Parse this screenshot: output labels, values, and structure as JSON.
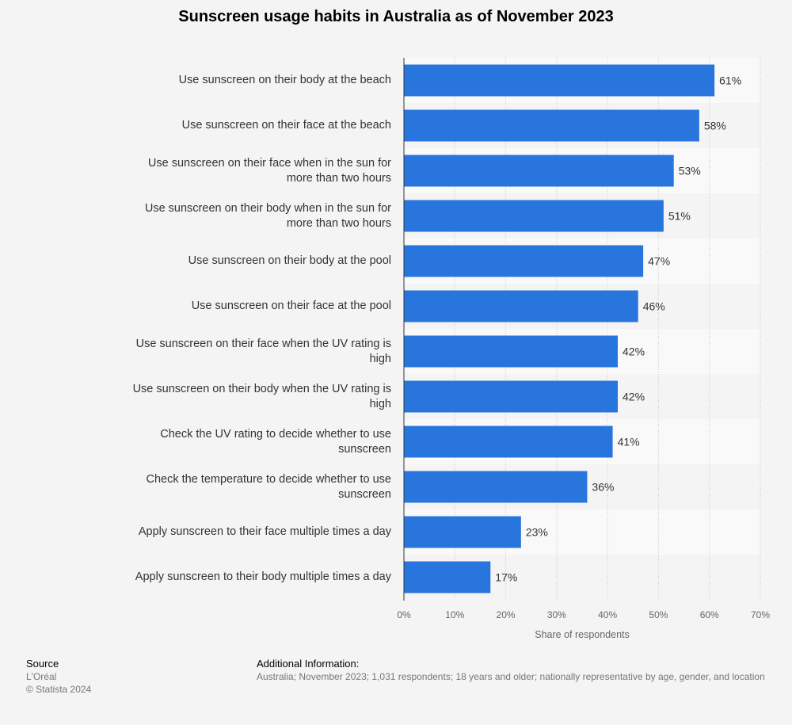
{
  "title": "Sunscreen usage habits in Australia as of November 2023",
  "chart_data": {
    "type": "bar",
    "orientation": "horizontal",
    "title": "Sunscreen usage habits in Australia as of November 2023",
    "categories": [
      "Use sunscreen on their body at the beach",
      "Use sunscreen on their face at the beach",
      "Use sunscreen on their face when in the sun for more than two hours",
      "Use sunscreen on their body when in the sun for more than two hours",
      "Use sunscreen on their body at the pool",
      "Use sunscreen on their face at the pool",
      "Use sunscreen on their face when the UV rating is high",
      "Use sunscreen on their body when the UV rating is high",
      "Check the UV rating to decide whether to use sunscreen",
      "Check the temperature to decide whether to use sunscreen",
      "Apply sunscreen to their face multiple times a day",
      "Apply sunscreen to their body multiple times a day"
    ],
    "values": [
      61,
      58,
      53,
      51,
      47,
      46,
      42,
      42,
      41,
      36,
      23,
      17
    ],
    "value_labels": [
      "61%",
      "58%",
      "53%",
      "51%",
      "47%",
      "46%",
      "42%",
      "42%",
      "41%",
      "36%",
      "23%",
      "17%"
    ],
    "xlabel": "Share of respondents",
    "ylabel": "",
    "xlim": [
      0,
      70
    ],
    "xticks": [
      0,
      10,
      20,
      30,
      40,
      50,
      60,
      70
    ],
    "xtick_labels": [
      "0%",
      "10%",
      "20%",
      "30%",
      "40%",
      "50%",
      "60%",
      "70%"
    ],
    "grid": true,
    "bar_color": "#2876dd"
  },
  "footer": {
    "source_heading": "Source",
    "source_name": "L'Oréal",
    "copyright": "© Statista 2024",
    "info_heading": "Additional Information:",
    "info_text": "Australia; November 2023; 1,031 respondents; 18 years and older; nationally representative by age, gender, and location"
  }
}
